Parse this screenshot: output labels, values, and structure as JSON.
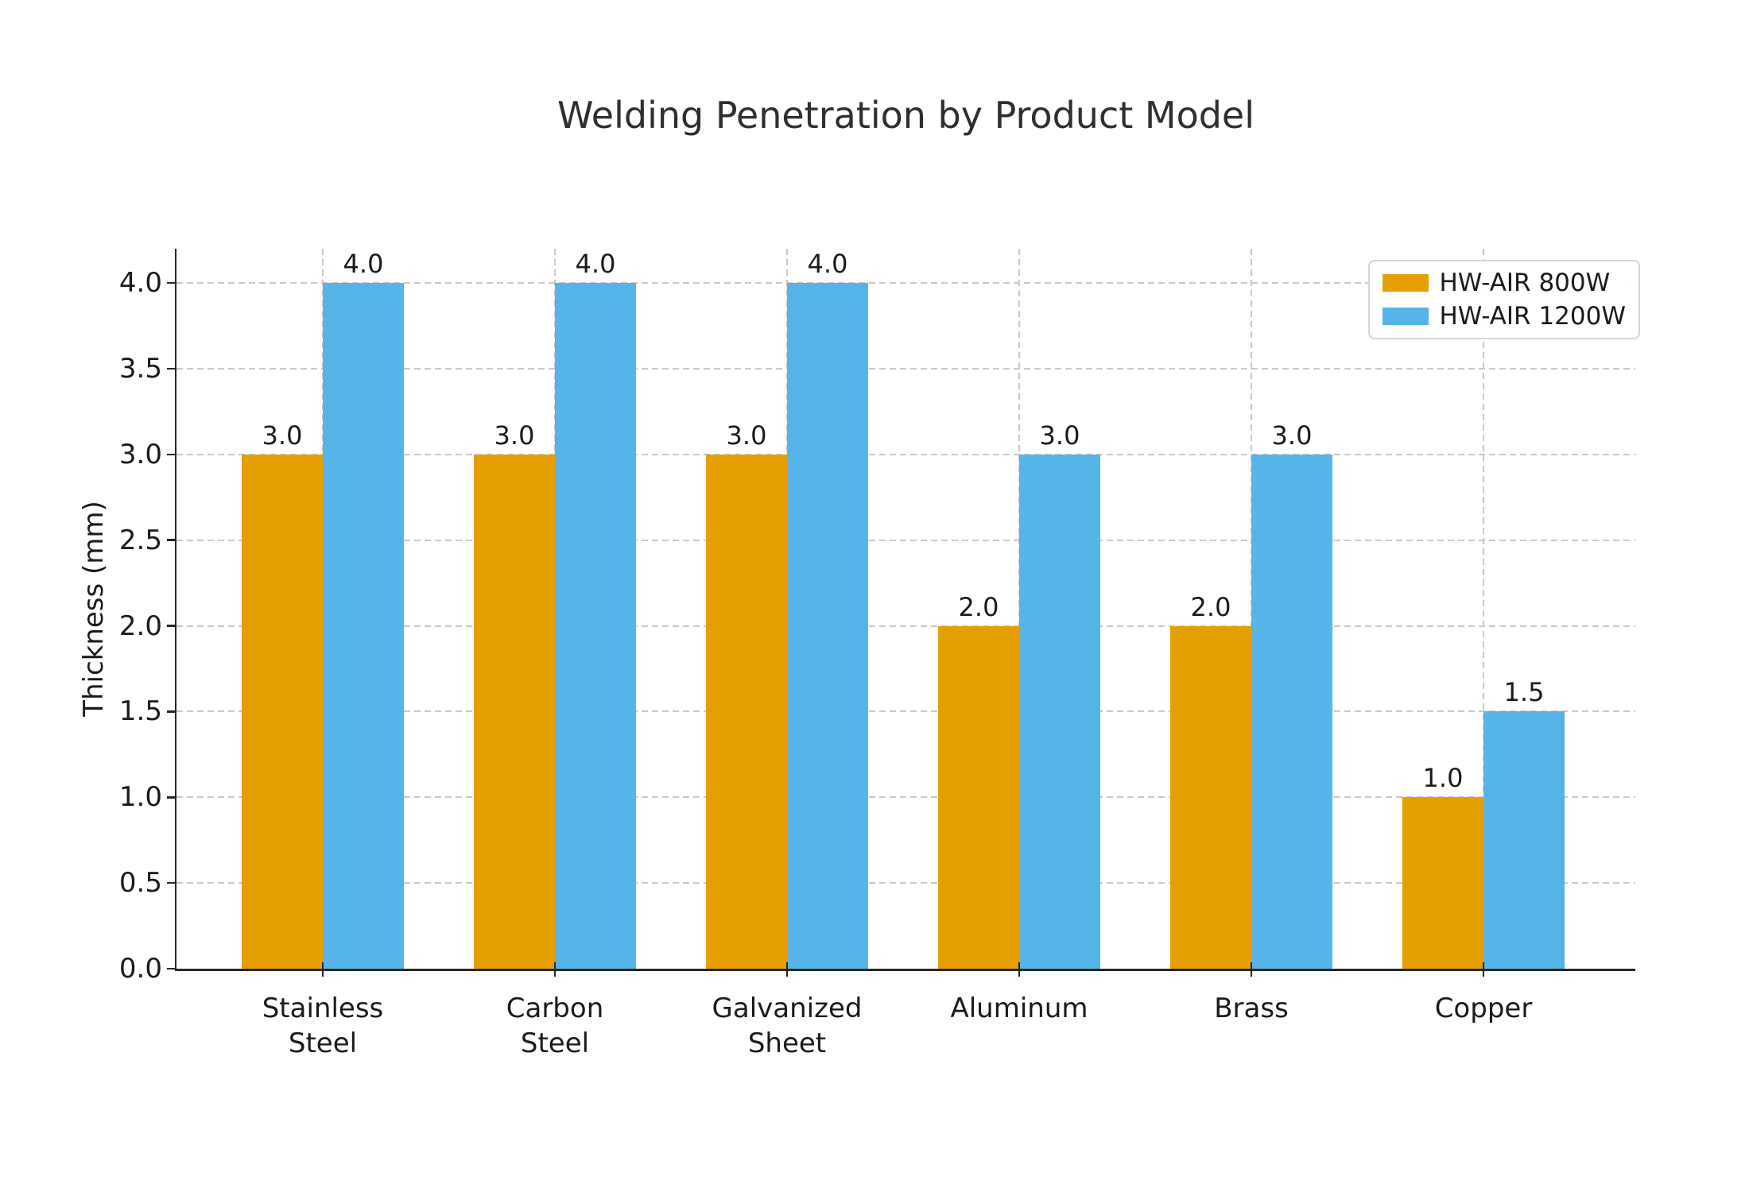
{
  "figure": {
    "title": "Welding Penetration by Product Model",
    "ylabel": "Thickness (mm)"
  },
  "colors": {
    "series_800w": "#E69F00",
    "series_1200w": "#56B4E9",
    "grid": "#c9c9c9",
    "axis": "#262626",
    "text": "#1a1a1a"
  },
  "legend": {
    "entries": [
      {
        "label": "HW-AIR 800W",
        "color": "#E69F00"
      },
      {
        "label": "HW-AIR 1200W",
        "color": "#56B4E9"
      }
    ]
  },
  "chart_data": {
    "type": "bar",
    "title": "Welding Penetration by Product Model",
    "xlabel": "",
    "ylabel": "Thickness (mm)",
    "categories": [
      "Stainless\nSteel",
      "Carbon\nSteel",
      "Galvanized\nSheet",
      "Aluminum",
      "Brass",
      "Copper"
    ],
    "series": [
      {
        "name": "HW-AIR 800W",
        "color": "#E69F00",
        "values": [
          3.0,
          3.0,
          3.0,
          2.0,
          2.0,
          1.0
        ],
        "labels": [
          "3.0",
          "3.0",
          "3.0",
          "2.0",
          "2.0",
          "1.0"
        ]
      },
      {
        "name": "HW-AIR 1200W",
        "color": "#56B4E9",
        "values": [
          4.0,
          4.0,
          4.0,
          3.0,
          3.0,
          1.5
        ],
        "labels": [
          "4.0",
          "4.0",
          "4.0",
          "3.0",
          "3.0",
          "1.5"
        ]
      }
    ],
    "ylim": [
      0,
      4.2
    ],
    "yticks": [
      "0.0",
      "0.5",
      "1.0",
      "1.5",
      "2.0",
      "2.5",
      "3.0",
      "3.5",
      "4.0"
    ],
    "grid": "dashed-horizontal-and-vertical",
    "legend_position": "upper right",
    "bar_value_labels": true
  }
}
